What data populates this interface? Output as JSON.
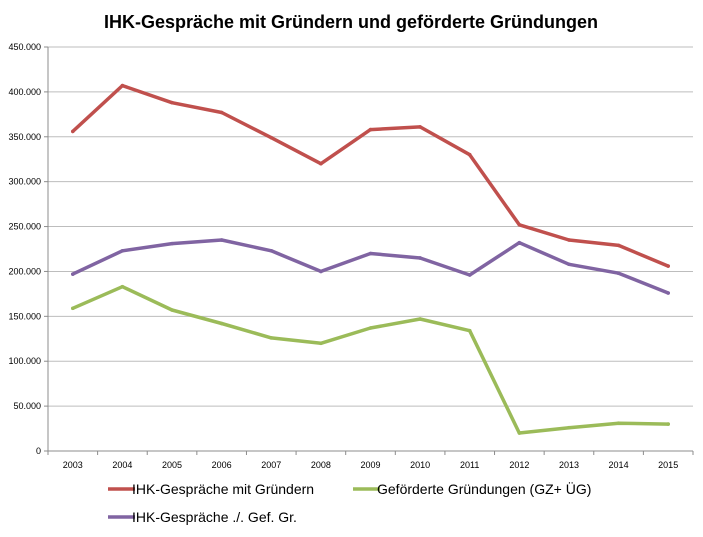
{
  "chart_data": {
    "type": "line",
    "title": "IHK-Gespräche mit Gründern und geförderte Gründungen",
    "xlabel": "",
    "ylabel": "",
    "x": [
      "2003",
      "2004",
      "2005",
      "2006",
      "2007",
      "2008",
      "2009",
      "2010",
      "2011",
      "2012",
      "2013",
      "2014",
      "2015"
    ],
    "ylim": [
      0,
      450000
    ],
    "yticks": [
      0,
      50000,
      100000,
      150000,
      200000,
      250000,
      300000,
      350000,
      400000,
      450000
    ],
    "ytick_labels": [
      "0",
      "50.000",
      "100.000",
      "150.000",
      "200.000",
      "250.000",
      "300.000",
      "350.000",
      "400.000",
      "450.000"
    ],
    "grid": true,
    "legend_position": "bottom",
    "series": [
      {
        "name": "IHK-Gespräche mit Gründern",
        "color": "#c0504d",
        "values": [
          356000,
          407000,
          388000,
          377000,
          349000,
          320000,
          358000,
          361000,
          330000,
          252000,
          235000,
          229000,
          206000
        ]
      },
      {
        "name": "Geförderte Gründungen (GZ+ ÜG)",
        "color": "#9bbb59",
        "values": [
          159000,
          183000,
          157000,
          142000,
          126000,
          120000,
          137000,
          147000,
          134000,
          20000,
          26000,
          31000,
          30000
        ]
      },
      {
        "name": "IHK-Gespräche ./. Gef. Gr.",
        "color": "#8064a2",
        "values": [
          197000,
          223000,
          231000,
          235000,
          223000,
          200000,
          220000,
          215000,
          196000,
          232000,
          208000,
          198000,
          176000
        ]
      }
    ]
  }
}
